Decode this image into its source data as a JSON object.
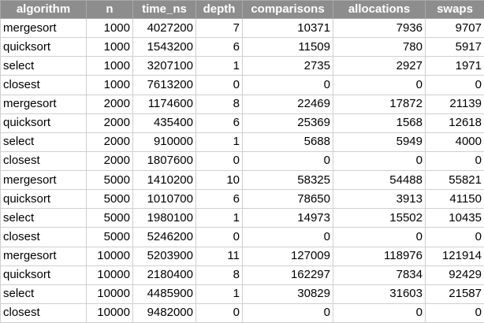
{
  "colors": {
    "header_background": "#8d8d8d",
    "header_text": "#ffffff",
    "cell_background": "#ffffff",
    "gridline": "#d0d0d0"
  },
  "table": {
    "headers": [
      "algorithm",
      "n",
      "time_ns",
      "depth",
      "comparisons",
      "allocations",
      "swaps"
    ],
    "rows": [
      [
        "mergesort",
        "1000",
        "4027200",
        "7",
        "10371",
        "7936",
        "9707"
      ],
      [
        "quicksort",
        "1000",
        "1543200",
        "6",
        "11509",
        "780",
        "5917"
      ],
      [
        "select",
        "1000",
        "3207100",
        "1",
        "2735",
        "2927",
        "1971"
      ],
      [
        "closest",
        "1000",
        "7613200",
        "0",
        "0",
        "0",
        "0"
      ],
      [
        "mergesort",
        "2000",
        "1174600",
        "8",
        "22469",
        "17872",
        "21139"
      ],
      [
        "quicksort",
        "2000",
        "435400",
        "6",
        "25369",
        "1568",
        "12618"
      ],
      [
        "select",
        "2000",
        "910000",
        "1",
        "5688",
        "5949",
        "4000"
      ],
      [
        "closest",
        "2000",
        "1807600",
        "0",
        "0",
        "0",
        "0"
      ],
      [
        "mergesort",
        "5000",
        "1410200",
        "10",
        "58325",
        "54488",
        "55821"
      ],
      [
        "quicksort",
        "5000",
        "1010700",
        "6",
        "78650",
        "3913",
        "41150"
      ],
      [
        "select",
        "5000",
        "1980100",
        "1",
        "14973",
        "15502",
        "10435"
      ],
      [
        "closest",
        "5000",
        "5246200",
        "0",
        "0",
        "0",
        "0"
      ],
      [
        "mergesort",
        "10000",
        "5203900",
        "11",
        "127009",
        "118976",
        "121914"
      ],
      [
        "quicksort",
        "10000",
        "2180400",
        "8",
        "162297",
        "7834",
        "92429"
      ],
      [
        "select",
        "10000",
        "4485900",
        "1",
        "30829",
        "31603",
        "21587"
      ],
      [
        "closest",
        "10000",
        "9482000",
        "0",
        "0",
        "0",
        "0"
      ]
    ]
  }
}
